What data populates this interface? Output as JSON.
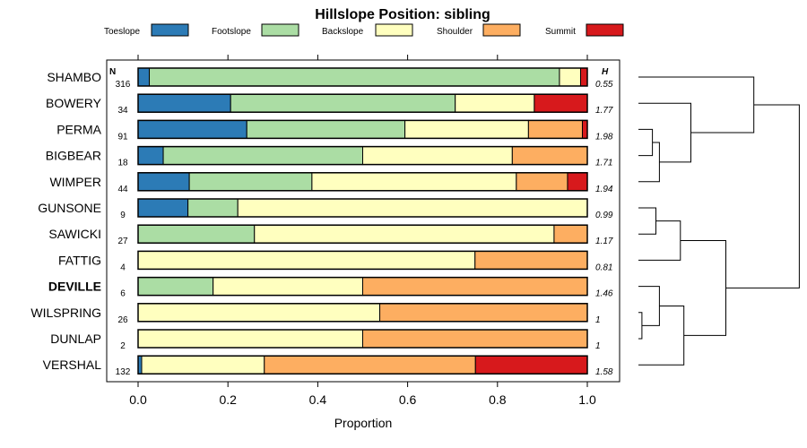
{
  "chart_data": {
    "type": "bar",
    "stacked": "proportion",
    "orientation": "horizontal",
    "title": "Hillslope Position: sibling",
    "xlabel": "Proportion",
    "ylabel": "",
    "xlim": [
      0,
      1
    ],
    "x_ticks": [
      "0.0",
      "0.2",
      "0.4",
      "0.6",
      "0.8",
      "1.0"
    ],
    "n_header": "N",
    "h_header": "H",
    "legend_position": "top",
    "series": [
      {
        "name": "Toeslope",
        "color": "#2C7BB6"
      },
      {
        "name": "Footslope",
        "color": "#ABDDA4"
      },
      {
        "name": "Backslope",
        "color": "#FFFFBF"
      },
      {
        "name": "Shoulder",
        "color": "#FDAE61"
      },
      {
        "name": "Summit",
        "color": "#D7191C"
      }
    ],
    "rows": [
      {
        "label": "SHAMBO",
        "n": "316",
        "h": "0.55",
        "bold": false,
        "values": [
          0.025,
          0.913,
          0.047,
          0.0,
          0.015
        ]
      },
      {
        "label": "BOWERY",
        "n": "34",
        "h": "1.77",
        "bold": false,
        "values": [
          0.206,
          0.5,
          0.176,
          0.0,
          0.118
        ]
      },
      {
        "label": "PERMA",
        "n": "91",
        "h": "1.98",
        "bold": false,
        "values": [
          0.242,
          0.352,
          0.275,
          0.12,
          0.011
        ]
      },
      {
        "label": "BIGBEAR",
        "n": "18",
        "h": "1.71",
        "bold": false,
        "values": [
          0.056,
          0.444,
          0.333,
          0.167,
          0.0
        ]
      },
      {
        "label": "WIMPER",
        "n": "44",
        "h": "1.94",
        "bold": false,
        "values": [
          0.114,
          0.273,
          0.455,
          0.114,
          0.044
        ]
      },
      {
        "label": "GUNSONE",
        "n": "9",
        "h": "0.99",
        "bold": false,
        "values": [
          0.111,
          0.111,
          0.778,
          0.0,
          0.0
        ]
      },
      {
        "label": "SAWICKI",
        "n": "27",
        "h": "1.17",
        "bold": false,
        "values": [
          0.0,
          0.259,
          0.667,
          0.074,
          0.0
        ]
      },
      {
        "label": "FATTIG",
        "n": "4",
        "h": "0.81",
        "bold": false,
        "values": [
          0.0,
          0.0,
          0.75,
          0.25,
          0.0
        ]
      },
      {
        "label": "DEVILLE",
        "n": "6",
        "h": "1.46",
        "bold": true,
        "values": [
          0.0,
          0.167,
          0.333,
          0.5,
          0.0
        ]
      },
      {
        "label": "WILSPRING",
        "n": "26",
        "h": "1",
        "bold": false,
        "values": [
          0.0,
          0.0,
          0.538,
          0.462,
          0.0
        ]
      },
      {
        "label": "DUNLAP",
        "n": "2",
        "h": "1",
        "bold": false,
        "values": [
          0.0,
          0.0,
          0.5,
          0.5,
          0.0
        ]
      },
      {
        "label": "VERSHAL",
        "n": "132",
        "h": "1.58",
        "bold": false,
        "values": [
          0.008,
          0.0,
          0.273,
          0.47,
          0.249
        ]
      }
    ],
    "dendrogram": {
      "description": "hierarchical clustering of rows",
      "merges": [
        {
          "a": "PERMA",
          "b": "BIGBEAR",
          "height": 0.04
        },
        {
          "a": "M0",
          "b": "WIMPER",
          "height": 0.06
        },
        {
          "a": "M1",
          "b": "BOWERY",
          "height": 0.15
        },
        {
          "a": "M2",
          "b": "SHAMBO",
          "height": 0.33
        },
        {
          "a": "GUNSONE",
          "b": "SAWICKI",
          "height": 0.05
        },
        {
          "a": "M4",
          "b": "FATTIG",
          "height": 0.12
        },
        {
          "a": "WILSPRING",
          "b": "DUNLAP",
          "height": 0.01
        },
        {
          "a": "M6",
          "b": "DEVILLE",
          "height": 0.06
        },
        {
          "a": "M7",
          "b": "VERSHAL",
          "height": 0.13
        },
        {
          "a": "M5",
          "b": "M8",
          "height": 0.25
        },
        {
          "a": "M3",
          "b": "M9",
          "height": 0.46
        }
      ]
    }
  }
}
